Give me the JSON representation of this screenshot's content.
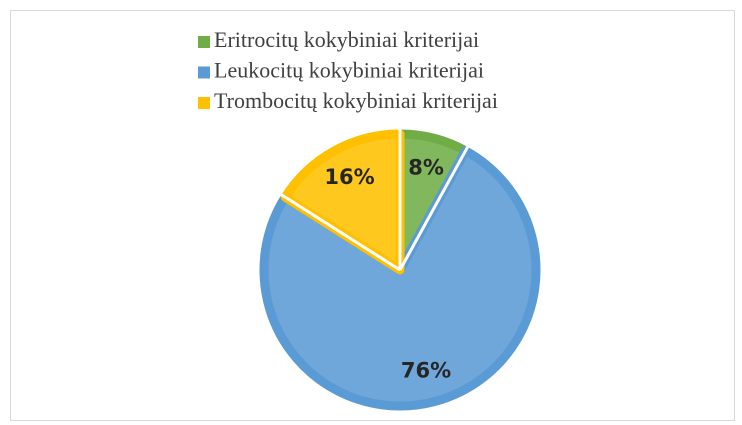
{
  "chart_data": {
    "type": "pie",
    "categories": [
      "Eritrocitų kokybiniai kriterijai",
      "Leukocitų kokybiniai kriterijai",
      "Trombocitų kokybiniai kriterijai"
    ],
    "values": [
      8,
      76,
      16
    ],
    "value_labels": [
      "8%",
      "76%",
      "16%"
    ],
    "colors": [
      "#70ad47",
      "#5b9bd5",
      "#ffc000"
    ],
    "legend": "top"
  }
}
